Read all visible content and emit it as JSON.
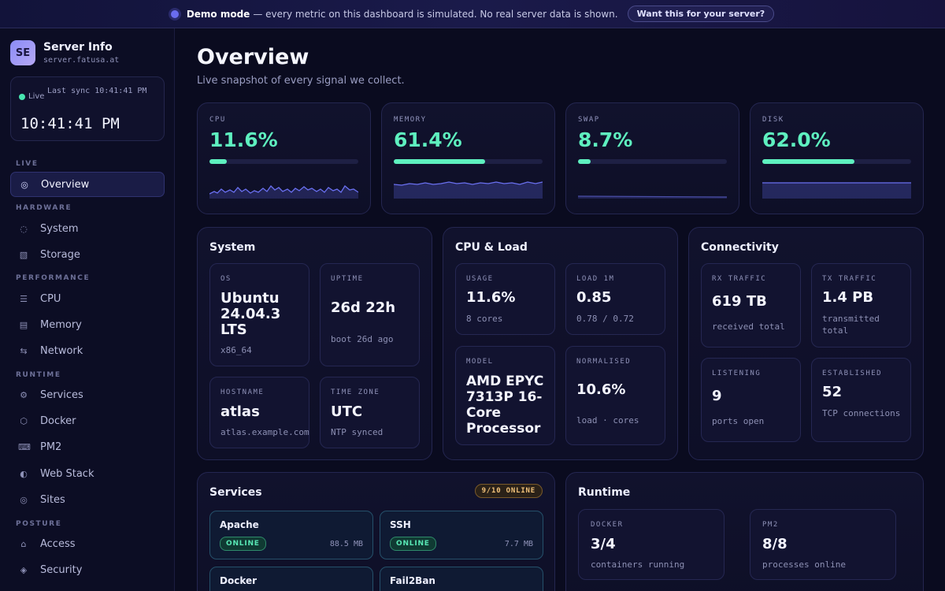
{
  "banner": {
    "mode_label": "Demo mode",
    "message": "— every metric on this dashboard is simulated. No real server data is shown.",
    "cta": "Want this for your server?"
  },
  "brand": {
    "initials": "SE",
    "name": "Server Info",
    "host": "server.fatusa.at"
  },
  "clock": {
    "live_label": "Live",
    "sync_label": "Last sync 10:41:41 PM",
    "time": "10:41:41 PM"
  },
  "nav": {
    "sections": [
      "LIVE",
      "HARDWARE",
      "PERFORMANCE",
      "RUNTIME",
      "POSTURE"
    ],
    "items": [
      {
        "label": "Overview",
        "icon": "target-icon"
      },
      {
        "label": "System",
        "icon": "circle-dashed-icon"
      },
      {
        "label": "Storage",
        "icon": "storage-icon"
      },
      {
        "label": "CPU",
        "icon": "lines-icon"
      },
      {
        "label": "Memory",
        "icon": "memory-icon"
      },
      {
        "label": "Network",
        "icon": "arrows-icon"
      },
      {
        "label": "Services",
        "icon": "gear-icon"
      },
      {
        "label": "Docker",
        "icon": "hexagon-icon"
      },
      {
        "label": "PM2",
        "icon": "keyboard-icon"
      },
      {
        "label": "Web Stack",
        "icon": "half-circle-icon"
      },
      {
        "label": "Sites",
        "icon": "globe-icon"
      },
      {
        "label": "Access",
        "icon": "home-icon"
      },
      {
        "label": "Security",
        "icon": "diamond-icon"
      }
    ]
  },
  "header": {
    "title": "Overview",
    "subtitle": "Live snapshot of every signal we collect."
  },
  "metrics": [
    {
      "label": "CPU",
      "value": "11.6%",
      "level": 0.116
    },
    {
      "label": "MEMORY",
      "value": "61.4%",
      "level": 0.614
    },
    {
      "label": "SWAP",
      "value": "8.7%",
      "level": 0.087
    },
    {
      "label": "DISK",
      "value": "62.0%",
      "level": 0.62
    }
  ],
  "system": {
    "title": "System",
    "os": {
      "label": "OS",
      "value": "Ubuntu 24.04.3 LTS",
      "sub": "x86_64"
    },
    "uptime": {
      "label": "UPTIME",
      "value": "26d 22h",
      "sub": "boot 26d ago"
    },
    "hostname": {
      "label": "HOSTNAME",
      "value": "atlas",
      "sub": "atlas.example.com"
    },
    "timezone": {
      "label": "TIME ZONE",
      "value": "UTC",
      "sub": "NTP synced"
    }
  },
  "cpu": {
    "title": "CPU & Load",
    "usage": {
      "label": "USAGE",
      "value": "11.6%",
      "sub": "8 cores"
    },
    "load": {
      "label": "LOAD 1M",
      "value": "0.85",
      "sub": "0.78 / 0.72"
    },
    "model": {
      "label": "MODEL",
      "value": "AMD EPYC 7313P 16-Core Processor"
    },
    "normalised": {
      "label": "NORMALISED",
      "value": "10.6%",
      "sub": "load · cores"
    }
  },
  "connectivity": {
    "title": "Connectivity",
    "rx": {
      "label": "RX TRAFFIC",
      "value": "619 TB",
      "sub": "received total"
    },
    "tx": {
      "label": "TX TRAFFIC",
      "value": "1.4 PB",
      "sub": "transmitted total"
    },
    "listening": {
      "label": "LISTENING",
      "value": "9",
      "sub": "ports open"
    },
    "established": {
      "label": "ESTABLISHED",
      "value": "52",
      "sub": "TCP connections"
    }
  },
  "services": {
    "title": "Services",
    "badge": "9/10 ONLINE",
    "items": [
      {
        "name": "Apache",
        "status": "ONLINE",
        "mem": "88.5 MB"
      },
      {
        "name": "SSH",
        "status": "ONLINE",
        "mem": "7.7 MB"
      },
      {
        "name": "Docker"
      },
      {
        "name": "Fail2Ban"
      }
    ]
  },
  "runtime": {
    "title": "Runtime",
    "docker": {
      "label": "DOCKER",
      "value": "3/4",
      "sub": "containers running"
    },
    "pm2": {
      "label": "PM2",
      "value": "8/8",
      "sub": "processes online"
    }
  }
}
